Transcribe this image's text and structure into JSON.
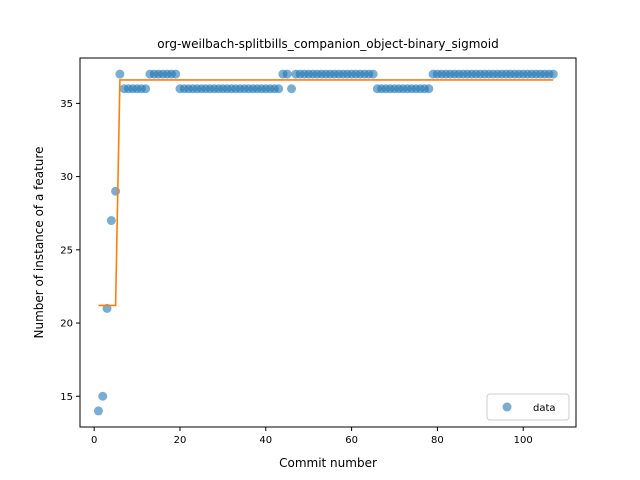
{
  "chart_data": {
    "type": "scatter",
    "title": "org-weilbach-splitbills_companion_object-binary_sigmoid",
    "xlabel": "Commit number",
    "ylabel": "Number of instance of a feature",
    "xlim": [
      -3.3,
      112.3
    ],
    "ylim": [
      12.9,
      38.1
    ],
    "xticks": [
      0,
      20,
      40,
      60,
      80,
      100
    ],
    "yticks": [
      15,
      20,
      25,
      30,
      35
    ],
    "legend": {
      "placement": "lower-right",
      "entries": [
        "data"
      ]
    },
    "colors": {
      "data": "#1f77b4",
      "fit": "#ff7f0e"
    },
    "series": [
      {
        "name": "data",
        "kind": "scatter",
        "x": [
          1,
          2,
          3,
          4,
          5,
          6,
          7,
          8,
          9,
          10,
          11,
          12,
          13,
          14,
          15,
          16,
          17,
          18,
          19,
          20,
          21,
          22,
          23,
          24,
          25,
          26,
          27,
          28,
          29,
          30,
          31,
          32,
          33,
          34,
          35,
          36,
          37,
          38,
          39,
          40,
          41,
          42,
          43,
          44,
          45,
          46,
          47,
          48,
          49,
          50,
          51,
          52,
          53,
          54,
          55,
          56,
          57,
          58,
          59,
          60,
          61,
          62,
          63,
          64,
          65,
          66,
          67,
          68,
          69,
          70,
          71,
          72,
          73,
          74,
          75,
          76,
          77,
          78,
          79,
          80,
          81,
          82,
          83,
          84,
          85,
          86,
          87,
          88,
          89,
          90,
          91,
          92,
          93,
          94,
          95,
          96,
          97,
          98,
          99,
          100,
          101,
          102,
          103,
          104,
          105,
          106,
          107
        ],
        "y": [
          14,
          15,
          21,
          27,
          29,
          37,
          36,
          36,
          36,
          36,
          36,
          36,
          37,
          37,
          37,
          37,
          37,
          37,
          37,
          36,
          36,
          36,
          36,
          36,
          36,
          36,
          36,
          36,
          36,
          36,
          36,
          36,
          36,
          36,
          36,
          36,
          36,
          36,
          36,
          36,
          36,
          36,
          36,
          37,
          37,
          36,
          37,
          37,
          37,
          37,
          37,
          37,
          37,
          37,
          37,
          37,
          37,
          37,
          37,
          37,
          37,
          37,
          37,
          37,
          37,
          36,
          36,
          36,
          36,
          36,
          36,
          36,
          36,
          36,
          36,
          36,
          36,
          36,
          37,
          37,
          37,
          37,
          37,
          37,
          37,
          37,
          37,
          37,
          37,
          37,
          37,
          37,
          37,
          37,
          37,
          37,
          37,
          37,
          37,
          37,
          37,
          37,
          37,
          37,
          37,
          37,
          37
        ]
      },
      {
        "name": "",
        "kind": "line",
        "x": [
          1,
          5,
          6,
          107
        ],
        "y": [
          21.2,
          21.2,
          36.6,
          36.6
        ]
      }
    ]
  }
}
